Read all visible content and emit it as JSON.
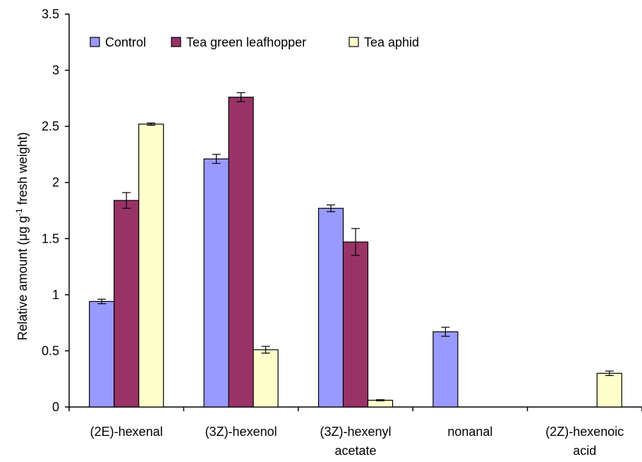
{
  "chart_data": {
    "type": "bar",
    "title": "",
    "xlabel": "",
    "ylabel_main": "Relative amount (μg g",
    "ylabel_sup": "-1",
    "ylabel_tail": " fresh weight)",
    "ylim": [
      0,
      3.5
    ],
    "yticks": [
      "0",
      "0.5",
      "1",
      "1.5",
      "2",
      "2.5",
      "3",
      "3.5"
    ],
    "categories": [
      [
        "(2E)-hexenal"
      ],
      [
        "(3Z)-hexenol"
      ],
      [
        "(3Z)-hexenyl",
        "acetate"
      ],
      [
        "nonanal"
      ],
      [
        "(2Z)-hexenoic",
        "acid"
      ]
    ],
    "series": [
      {
        "name": "Control",
        "color": "#9999ff",
        "values": [
          0.94,
          2.21,
          1.77,
          0.67,
          0
        ],
        "errors": [
          0.02,
          0.04,
          0.03,
          0.04,
          0
        ]
      },
      {
        "name": "Tea green leafhopper",
        "color": "#993366",
        "values": [
          1.84,
          2.76,
          1.47,
          0,
          0
        ],
        "errors": [
          0.07,
          0.04,
          0.12,
          0,
          0
        ]
      },
      {
        "name": "Tea aphid",
        "color": "#ffffcc",
        "values": [
          2.52,
          0.51,
          0.06,
          0,
          0.3
        ],
        "errors": [
          0.01,
          0.03,
          0.005,
          0,
          0.02
        ]
      }
    ],
    "grid": false,
    "legend_position": "top-left"
  }
}
